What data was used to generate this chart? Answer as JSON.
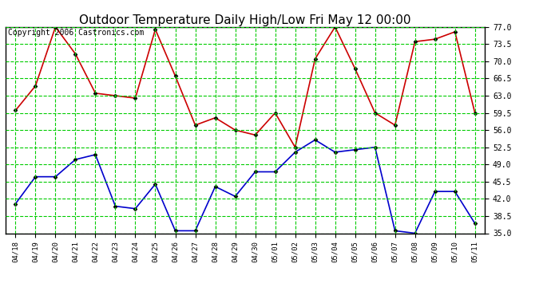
{
  "title": "Outdoor Temperature Daily High/Low Fri May 12 00:00",
  "copyright": "Copyright 2006 Castronics.com",
  "dates": [
    "04/18",
    "04/19",
    "04/20",
    "04/21",
    "04/22",
    "04/23",
    "04/24",
    "04/25",
    "04/26",
    "04/27",
    "04/28",
    "04/29",
    "04/30",
    "05/01",
    "05/02",
    "05/03",
    "05/04",
    "05/05",
    "05/06",
    "05/07",
    "05/08",
    "05/09",
    "05/10",
    "05/11"
  ],
  "highs": [
    60.0,
    65.0,
    77.0,
    71.5,
    63.5,
    63.0,
    62.5,
    76.5,
    67.0,
    57.0,
    58.5,
    56.0,
    55.0,
    59.5,
    52.5,
    70.5,
    77.0,
    68.5,
    59.5,
    57.0,
    74.0,
    74.5,
    76.0,
    59.5
  ],
  "lows": [
    41.0,
    46.5,
    46.5,
    50.0,
    51.0,
    40.5,
    40.0,
    45.0,
    35.5,
    35.5,
    44.5,
    42.5,
    47.5,
    47.5,
    51.5,
    54.0,
    51.5,
    52.0,
    52.5,
    35.5,
    35.0,
    43.5,
    43.5,
    37.0
  ],
  "high_color": "#cc0000",
  "low_color": "#0000cc",
  "grid_color": "#00cc00",
  "vgrid_color": "#888888",
  "bg_color": "#ffffff",
  "plot_bg_color": "#ffffff",
  "ylim_min": 35.0,
  "ylim_max": 77.0,
  "yticks": [
    35.0,
    38.5,
    42.0,
    45.5,
    49.0,
    52.5,
    56.0,
    59.5,
    63.0,
    66.5,
    70.0,
    73.5,
    77.0
  ],
  "title_fontsize": 11,
  "copyright_fontsize": 7,
  "marker": "D",
  "marker_size": 2.5,
  "line_width": 1.2
}
